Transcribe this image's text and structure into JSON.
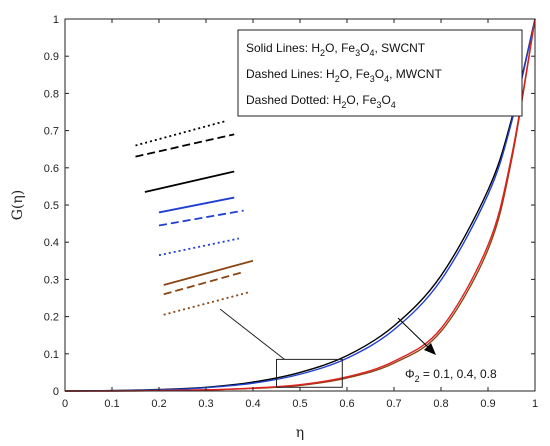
{
  "chart_data": {
    "type": "line",
    "xlabel": "η",
    "ylabel": "G(η)",
    "xlim": [
      0,
      1
    ],
    "ylim": [
      0,
      1
    ],
    "xticks": [
      "0",
      "0.1",
      "0.2",
      "0.3",
      "0.4",
      "0.5",
      "0.6",
      "0.7",
      "0.8",
      "0.9",
      "1"
    ],
    "yticks": [
      "0",
      "0.1",
      "0.2",
      "0.3",
      "0.4",
      "0.5",
      "0.6",
      "0.7",
      "0.8",
      "0.9",
      "1"
    ],
    "x": [
      0,
      0.1,
      0.2,
      0.3,
      0.4,
      0.5,
      0.6,
      0.7,
      0.8,
      0.9,
      0.95,
      1.0
    ],
    "series": [
      {
        "line_style": "solid",
        "color": "#000000",
        "values": [
          0,
          0.001,
          0.004,
          0.01,
          0.024,
          0.05,
          0.095,
          0.175,
          0.31,
          0.54,
          0.73,
          1.0
        ]
      },
      {
        "line_style": "solid",
        "color": "#1f3fd0",
        "values": [
          0,
          0.001,
          0.003,
          0.009,
          0.021,
          0.045,
          0.088,
          0.165,
          0.298,
          0.528,
          0.722,
          1.0
        ]
      },
      {
        "line_style": "solid",
        "color": "#8b4513",
        "values": [
          0,
          0.0,
          0.001,
          0.003,
          0.007,
          0.015,
          0.035,
          0.075,
          0.16,
          0.38,
          0.62,
          1.0
        ]
      },
      {
        "line_style": "solid",
        "color": "#e02020",
        "values": [
          0,
          0.0,
          0.001,
          0.003,
          0.008,
          0.017,
          0.038,
          0.08,
          0.168,
          0.392,
          0.63,
          1.0
        ]
      }
    ],
    "legend": {
      "placement": "top-right",
      "lines": [
        {
          "text": "Solid Lines: H",
          "s1": "2",
          "mid1": "O, Fe",
          "s2": "3",
          "mid2": "O",
          "s3": "4",
          "end": ", SWCNT"
        },
        {
          "text": "Dashed Lines: H",
          "s1": "2",
          "mid1": "O, Fe",
          "s2": "3",
          "mid2": "O",
          "s3": "4",
          "end": ", MWCNT"
        },
        {
          "text": "Dashed Dotted: H",
          "s1": "2",
          "mid1": "O, Fe",
          "s2": "3",
          "mid2": "O",
          "s3": "4",
          "end": ""
        }
      ]
    },
    "annotation": {
      "prefix": "Φ",
      "sub": "2",
      "rest": " = 0.1, 0.4, 0.8"
    },
    "zoom_box": {
      "x_range": [
        0.45,
        0.59
      ],
      "y_range": [
        0.01,
        0.085
      ]
    },
    "inset_lines": [
      {
        "color": "#000000",
        "dash": "2,3",
        "x0": 0.15,
        "y0": 0.66,
        "x1": 0.34,
        "y1": 0.725
      },
      {
        "color": "#000000",
        "dash": "8,4",
        "x0": 0.15,
        "y0": 0.63,
        "x1": 0.36,
        "y1": 0.69
      },
      {
        "color": "#000000",
        "dash": "",
        "x0": 0.17,
        "y0": 0.535,
        "x1": 0.36,
        "y1": 0.59
      },
      {
        "color": "#1f3fd0",
        "dash": "",
        "x0": 0.2,
        "y0": 0.48,
        "x1": 0.36,
        "y1": 0.52
      },
      {
        "color": "#1f3fd0",
        "dash": "8,4",
        "x0": 0.2,
        "y0": 0.445,
        "x1": 0.38,
        "y1": 0.485
      },
      {
        "color": "#1f3fd0",
        "dash": "2,3",
        "x0": 0.2,
        "y0": 0.365,
        "x1": 0.37,
        "y1": 0.41
      },
      {
        "color": "#8b4513",
        "dash": "",
        "x0": 0.21,
        "y0": 0.285,
        "x1": 0.4,
        "y1": 0.35
      },
      {
        "color": "#8b4513",
        "dash": "8,4",
        "x0": 0.21,
        "y0": 0.26,
        "x1": 0.38,
        "y1": 0.32
      },
      {
        "color": "#8b4513",
        "dash": "2,3",
        "x0": 0.21,
        "y0": 0.205,
        "x1": 0.39,
        "y1": 0.265
      }
    ]
  }
}
